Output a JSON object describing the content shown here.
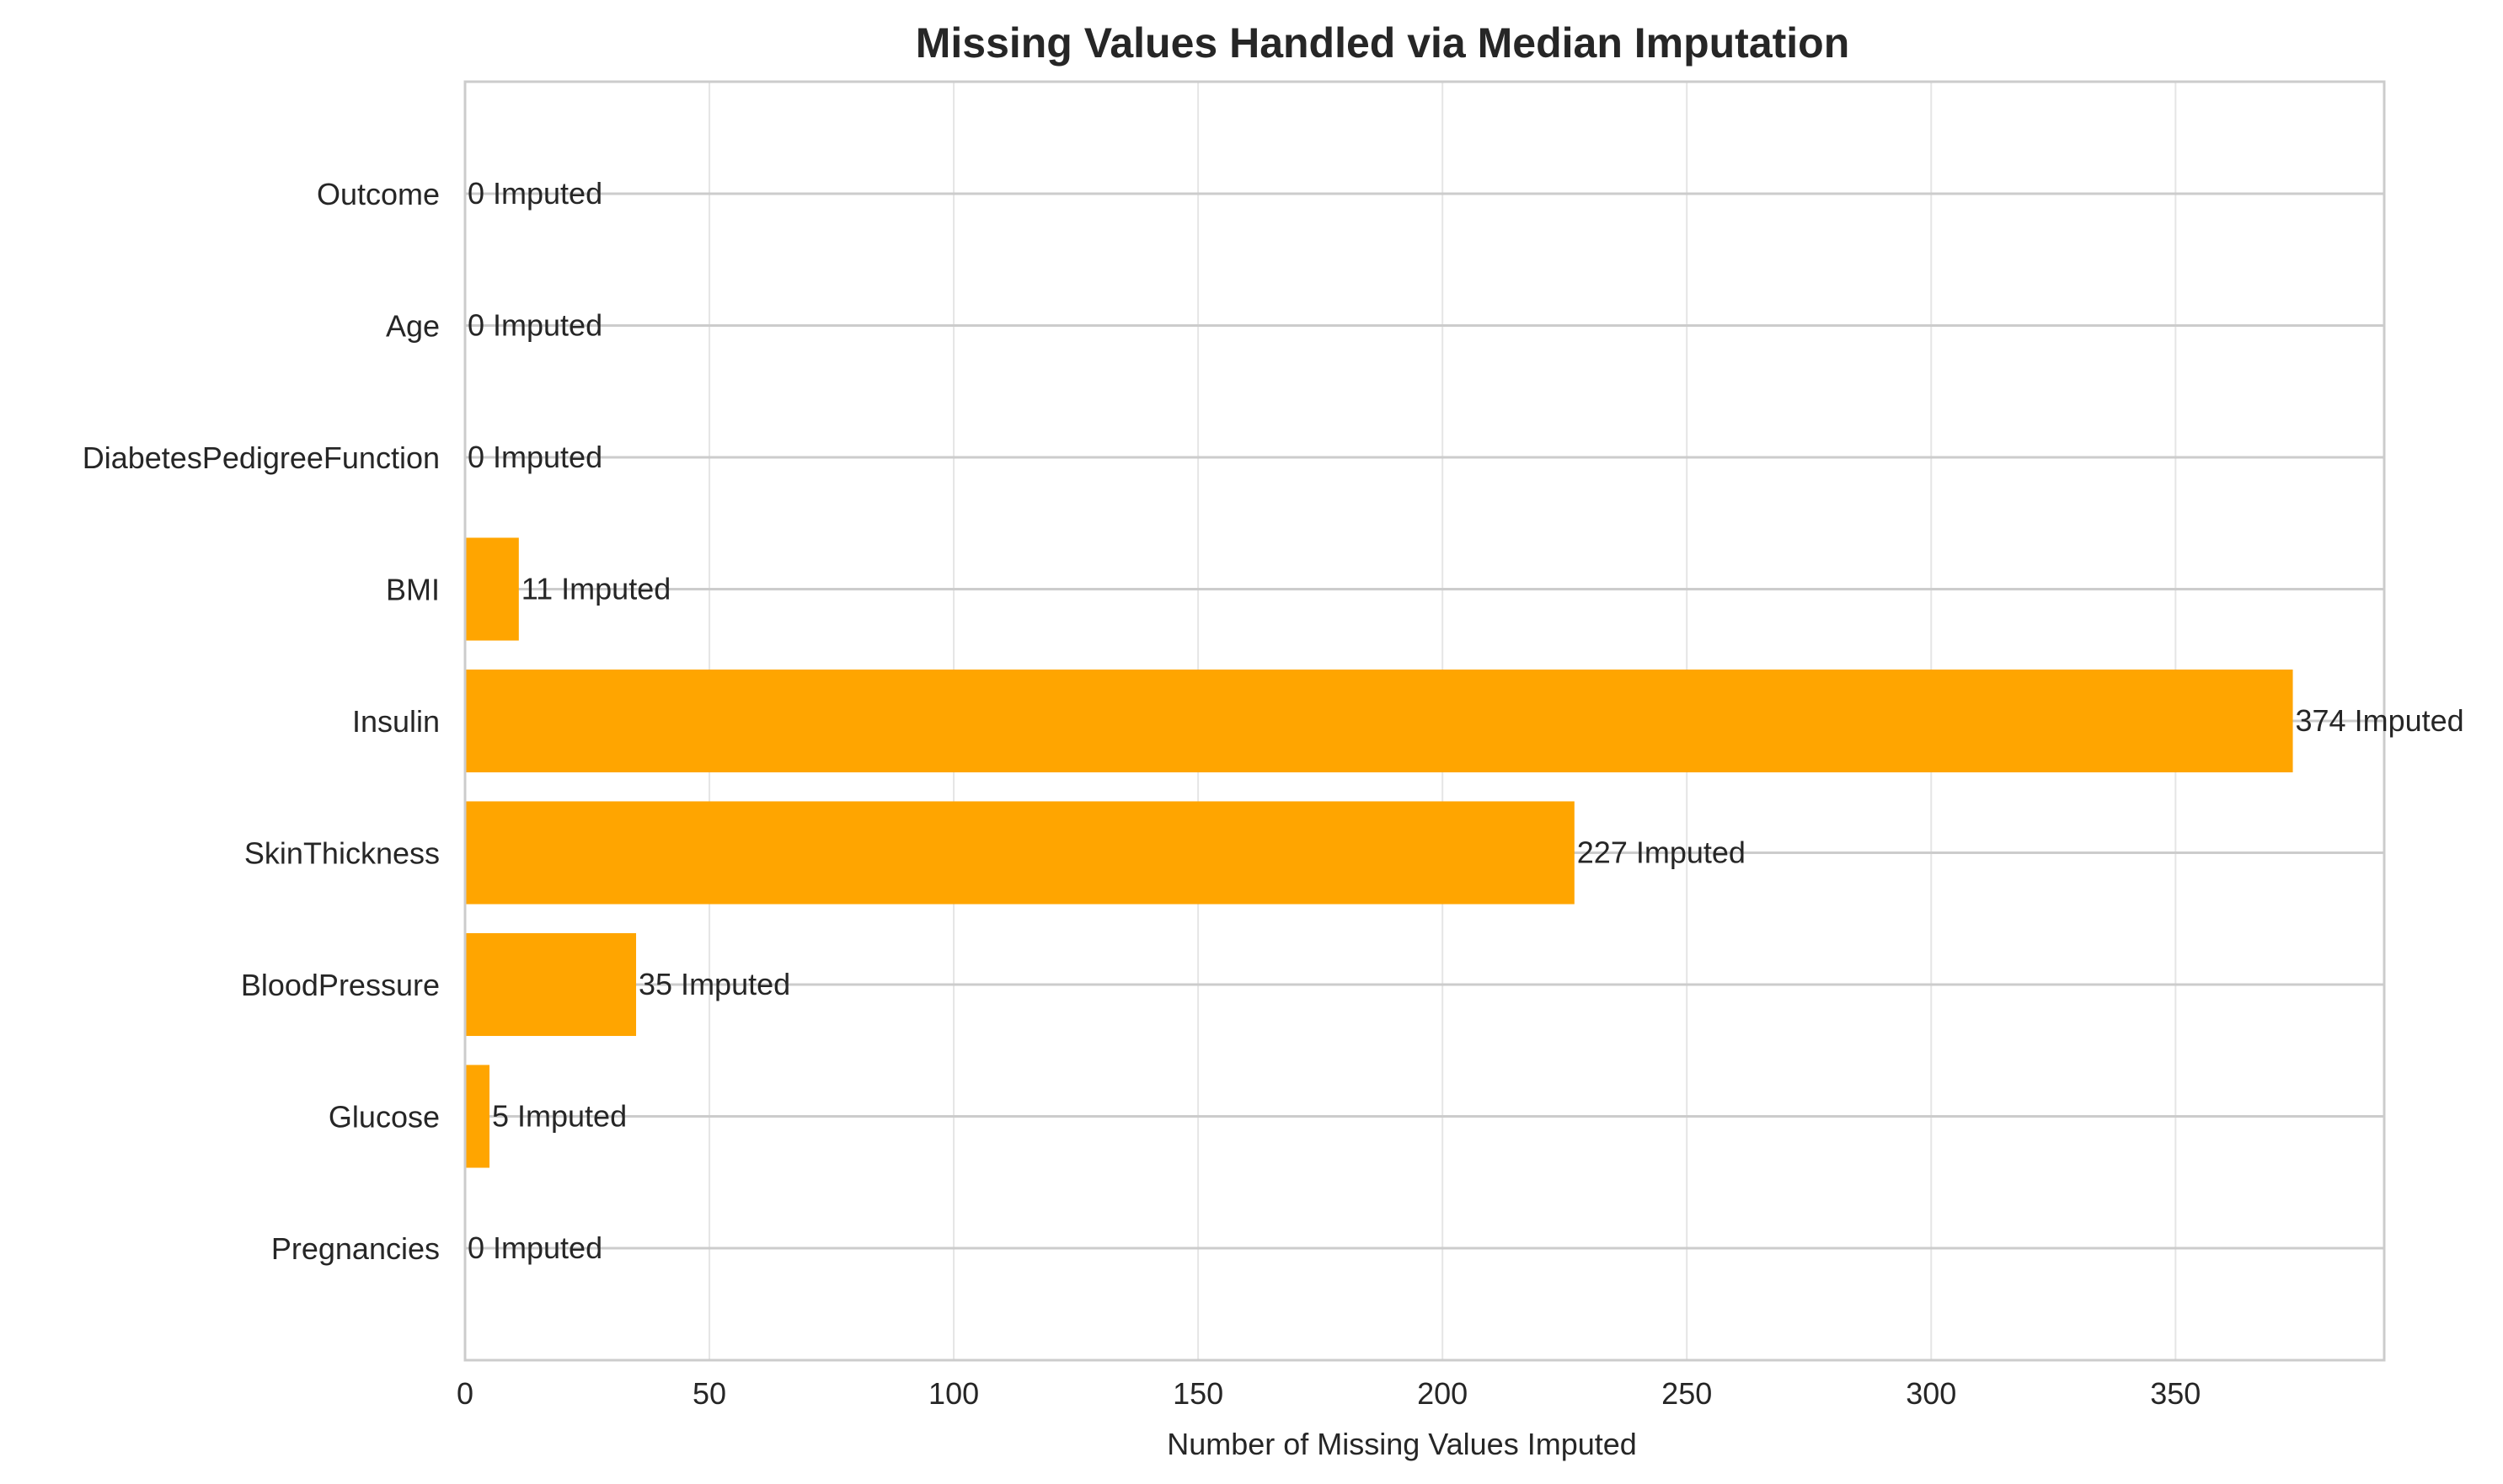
{
  "chart_data": {
    "type": "bar",
    "orientation": "horizontal",
    "title": "Missing Values Handled via Median Imputation",
    "xlabel": "Number of Missing Values Imputed",
    "ylabel": "",
    "categories": [
      "Pregnancies",
      "Glucose",
      "BloodPressure",
      "SkinThickness",
      "Insulin",
      "BMI",
      "DiabetesPedigreeFunction",
      "Age",
      "Outcome"
    ],
    "values": [
      0,
      5,
      35,
      227,
      374,
      11,
      0,
      0,
      0
    ],
    "data_labels": [
      "0 Imputed",
      "5 Imputed",
      "35 Imputed",
      "227 Imputed",
      "374 Imputed",
      "11 Imputed",
      "0 Imputed",
      "0 Imputed",
      "0 Imputed"
    ],
    "xlim": [
      0,
      392.7
    ],
    "xticks": [
      0,
      50,
      100,
      150,
      200,
      250,
      300,
      350
    ],
    "xtick_labels": [
      "0",
      "50",
      "100",
      "150",
      "200",
      "250",
      "300",
      "350"
    ],
    "grid": true,
    "bar_color": "#FFA500",
    "grid_color": "#e5e5e5",
    "hline_color": "#cccccc",
    "spine_color": "#cccccc"
  }
}
